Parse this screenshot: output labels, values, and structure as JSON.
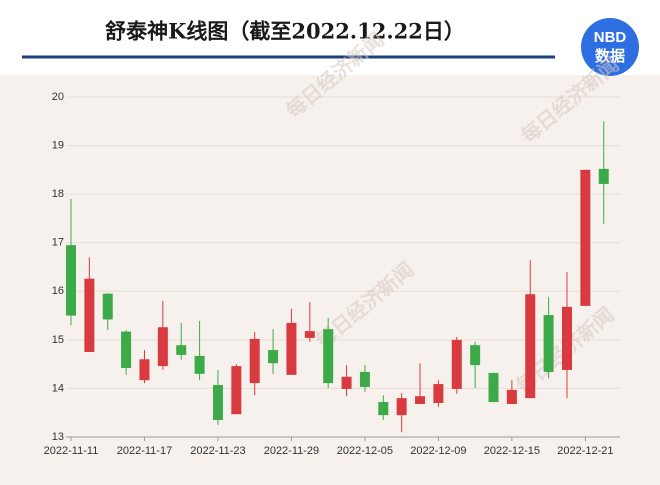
{
  "chart_data": {
    "type": "candlestick",
    "title": "舒泰神K线图（截至2022.12.22日）",
    "logo": {
      "line1": "NBD",
      "line2": "数据"
    },
    "watermark": "每日经济新闻",
    "categories": [
      "2022-11-11",
      null,
      null,
      null,
      "2022-11-17",
      null,
      null,
      null,
      "2022-11-23",
      null,
      null,
      null,
      "2022-11-29",
      null,
      null,
      null,
      "2022-12-05",
      null,
      null,
      null,
      "2022-12-09",
      null,
      null,
      null,
      "2022-12-15",
      null,
      null,
      null,
      "2022-12-21",
      null
    ],
    "open": [
      16.95,
      14.75,
      15.95,
      15.17,
      14.17,
      14.46,
      14.89,
      14.67,
      14.07,
      13.47,
      14.11,
      14.79,
      14.28,
      15.04,
      15.22,
      13.99,
      14.34,
      13.72,
      13.45,
      13.68,
      13.7,
      13.99,
      14.89,
      14.32,
      13.68,
      13.8,
      15.51,
      14.38,
      15.7,
      18.52
    ],
    "high": [
      17.9,
      16.7,
      15.96,
      15.2,
      14.79,
      15.8,
      15.35,
      15.39,
      14.38,
      14.5,
      15.16,
      15.22,
      15.64,
      15.78,
      15.45,
      14.48,
      14.48,
      13.86,
      13.9,
      14.52,
      14.17,
      15.06,
      14.96,
      14.32,
      14.17,
      16.64,
      15.88,
      16.4,
      18.5,
      19.5
    ],
    "low": [
      15.3,
      14.75,
      15.2,
      14.28,
      14.11,
      14.38,
      14.59,
      14.17,
      13.25,
      13.47,
      13.86,
      14.3,
      14.28,
      14.96,
      14.01,
      13.84,
      13.93,
      13.35,
      13.1,
      13.68,
      13.62,
      13.89,
      14.01,
      13.72,
      13.68,
      13.8,
      14.21,
      13.8,
      15.7,
      17.39
    ],
    "close": [
      15.5,
      16.26,
      15.42,
      14.42,
      14.6,
      15.26,
      14.69,
      14.3,
      13.35,
      14.46,
      15.02,
      14.52,
      15.35,
      15.18,
      14.11,
      14.24,
      14.03,
      13.45,
      13.8,
      13.84,
      14.09,
      15.0,
      14.48,
      13.72,
      13.97,
      15.94,
      14.34,
      15.68,
      18.5,
      18.21
    ],
    "up_color": "#d93a3f",
    "down_color": "#3daa4a",
    "ylim": [
      13,
      20
    ],
    "yticks": [
      13,
      14,
      15,
      16,
      17,
      18,
      19,
      20
    ],
    "grid": true
  }
}
